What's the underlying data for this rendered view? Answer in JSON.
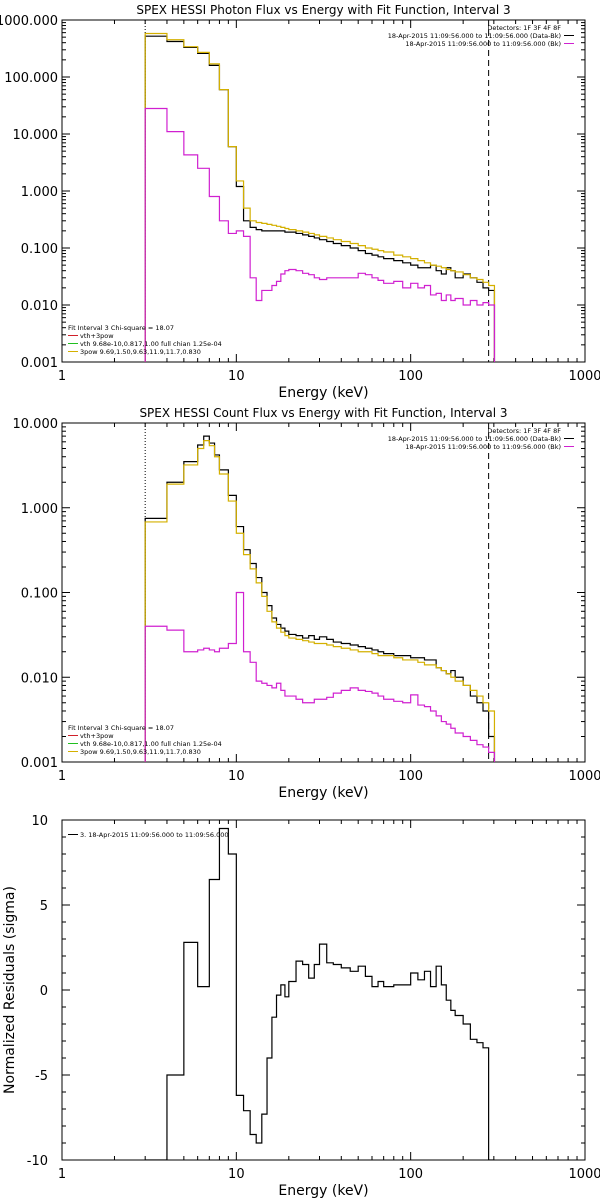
{
  "chart_data": [
    {
      "type": "line",
      "title": "SPEX HESSI Photon Flux vs Energy with Fit Function, Interval 3",
      "xlabel": "Energy (keV)",
      "ylabel": "",
      "xscale": "log",
      "yscale": "log",
      "xlim": [
        1,
        1000
      ],
      "ylim": [
        0.001,
        1000
      ],
      "xticks": [
        "1",
        "10",
        "100",
        "1000"
      ],
      "yticks": [
        "0.001",
        "0.010",
        "0.100",
        "1.000",
        "10.000",
        "100.000",
        "1000.000"
      ],
      "vlines": [
        3,
        280
      ],
      "legend_top": {
        "heading": "Detectors: 1F 3F 4F 8F",
        "items": [
          {
            "text": "18-Apr-2015 11:09:56.000 to 11:09:56.000 (Data-Bk)",
            "color": "#000000"
          },
          {
            "text": "18-Apr-2015 11:09:56.000 to 11:09:56.000 (Bk)",
            "color": "#d020d0"
          }
        ]
      },
      "legend_bottom": {
        "heading": "Fit Interval 3   Chi-square = 18.07",
        "items": [
          {
            "text": "vth+3pow",
            "color": "#d0202a"
          },
          {
            "text": "vth 9.68e-10,0.817,1.00  full chian 1.25e-04",
            "color": "#20c020"
          },
          {
            "text": "3pow 9.69,1.50,9.63,11.9,11.7,0.830",
            "color": "#d4b000"
          }
        ]
      },
      "series": [
        {
          "name": "Data-Bk",
          "color": "#000000",
          "step": true,
          "x": [
            3,
            4,
            5,
            6,
            7,
            8,
            9,
            10,
            11,
            12,
            13,
            14,
            15,
            16,
            17,
            18,
            19,
            20,
            22,
            24,
            26,
            28,
            30,
            33,
            36,
            40,
            45,
            50,
            55,
            60,
            65,
            70,
            80,
            90,
            100,
            110,
            120,
            130,
            140,
            150,
            160,
            170,
            180,
            200,
            220,
            240,
            260,
            280
          ],
          "y": [
            520,
            420,
            330,
            260,
            160,
            60,
            6,
            1.2,
            0.3,
            0.23,
            0.21,
            0.2,
            0.2,
            0.2,
            0.2,
            0.2,
            0.19,
            0.19,
            0.18,
            0.17,
            0.16,
            0.15,
            0.14,
            0.13,
            0.12,
            0.11,
            0.1,
            0.09,
            0.08,
            0.075,
            0.07,
            0.065,
            0.06,
            0.055,
            0.05,
            0.045,
            0.045,
            0.05,
            0.04,
            0.035,
            0.045,
            0.04,
            0.03,
            0.035,
            0.03,
            0.025,
            0.02,
            0.018
          ]
        },
        {
          "name": "3pow fit",
          "color": "#d4b000",
          "step": true,
          "x": [
            3,
            4,
            5,
            6,
            7,
            8,
            9,
            10,
            11,
            12,
            13,
            14,
            15,
            16,
            17,
            18,
            19,
            20,
            22,
            24,
            26,
            28,
            30,
            33,
            36,
            40,
            45,
            50,
            55,
            60,
            65,
            70,
            80,
            90,
            100,
            110,
            120,
            130,
            140,
            150,
            160,
            170,
            180,
            200,
            220,
            240,
            260,
            280
          ],
          "y": [
            580,
            450,
            340,
            270,
            170,
            60,
            6,
            1.5,
            0.5,
            0.3,
            0.28,
            0.27,
            0.26,
            0.25,
            0.24,
            0.23,
            0.22,
            0.21,
            0.2,
            0.19,
            0.18,
            0.17,
            0.16,
            0.15,
            0.14,
            0.13,
            0.12,
            0.11,
            0.1,
            0.095,
            0.09,
            0.085,
            0.075,
            0.07,
            0.065,
            0.06,
            0.055,
            0.05,
            0.048,
            0.045,
            0.042,
            0.04,
            0.038,
            0.034,
            0.03,
            0.028,
            0.025,
            0.022
          ]
        },
        {
          "name": "Bk",
          "color": "#d020d0",
          "step": true,
          "x": [
            3,
            4,
            5,
            6,
            7,
            8,
            9,
            10,
            11,
            12,
            13,
            14,
            15,
            16,
            17,
            18,
            19,
            20,
            22,
            24,
            26,
            28,
            30,
            33,
            36,
            40,
            45,
            50,
            55,
            60,
            65,
            70,
            80,
            90,
            100,
            110,
            120,
            130,
            140,
            150,
            160,
            170,
            180,
            200,
            220,
            240,
            260,
            280
          ],
          "y": [
            28,
            11,
            4.3,
            2.5,
            0.8,
            0.3,
            0.18,
            0.2,
            0.16,
            0.03,
            0.012,
            0.018,
            0.018,
            0.022,
            0.026,
            0.035,
            0.04,
            0.042,
            0.04,
            0.036,
            0.034,
            0.03,
            0.028,
            0.03,
            0.03,
            0.03,
            0.03,
            0.036,
            0.034,
            0.03,
            0.027,
            0.024,
            0.026,
            0.02,
            0.024,
            0.02,
            0.022,
            0.015,
            0.016,
            0.012,
            0.015,
            0.012,
            0.013,
            0.01,
            0.012,
            0.01,
            0.011,
            0.01
          ]
        }
      ]
    },
    {
      "type": "line",
      "title": "SPEX HESSI Count Flux vs Energy with Fit Function, Interval 3",
      "xlabel": "Energy (keV)",
      "ylabel": "",
      "xscale": "log",
      "yscale": "log",
      "xlim": [
        1,
        1000
      ],
      "ylim": [
        0.001,
        10
      ],
      "xticks": [
        "1",
        "10",
        "100",
        "1000"
      ],
      "yticks": [
        "0.001",
        "0.010",
        "0.100",
        "1.000",
        "10.000"
      ],
      "vlines": [
        3,
        280
      ],
      "legend_top": {
        "heading": "Detectors: 1F 3F 4F 8F",
        "items": [
          {
            "text": "18-Apr-2015 11:09:56.000 to 11:09:56.000 (Data-Bk)",
            "color": "#000000"
          },
          {
            "text": "18-Apr-2015 11:09:56.000 to 11:09:56.000 (Bk)",
            "color": "#d020d0"
          }
        ]
      },
      "legend_bottom": {
        "heading": "Fit Interval 3   Chi-square = 18.07",
        "items": [
          {
            "text": "vth+3pow",
            "color": "#d0202a"
          },
          {
            "text": "vth 9.68e-10,0.817,1.00  full chian 1.25e-04",
            "color": "#20c020"
          },
          {
            "text": "3pow 9.69,1.50,9.63,11.9,11.7,0.830",
            "color": "#d4b000"
          }
        ]
      },
      "series": [
        {
          "name": "Data-Bk",
          "color": "#000000",
          "step": true,
          "x": [
            3,
            4,
            5,
            6,
            6.5,
            7,
            7.5,
            8,
            9,
            10,
            11,
            12,
            13,
            14,
            15,
            16,
            17,
            18,
            19,
            20,
            22,
            24,
            26,
            28,
            30,
            33,
            36,
            40,
            45,
            50,
            55,
            60,
            65,
            70,
            80,
            90,
            100,
            110,
            120,
            130,
            140,
            150,
            160,
            170,
            180,
            200,
            220,
            240,
            260,
            280
          ],
          "y": [
            0.75,
            2,
            3.5,
            5.5,
            7,
            5.8,
            4.2,
            2.8,
            1.4,
            0.6,
            0.32,
            0.22,
            0.15,
            0.1,
            0.07,
            0.05,
            0.042,
            0.038,
            0.035,
            0.032,
            0.031,
            0.029,
            0.031,
            0.028,
            0.03,
            0.028,
            0.026,
            0.025,
            0.024,
            0.023,
            0.022,
            0.021,
            0.02,
            0.019,
            0.018,
            0.018,
            0.017,
            0.017,
            0.016,
            0.016,
            0.013,
            0.012,
            0.011,
            0.012,
            0.01,
            0.008,
            0.006,
            0.005,
            0.004,
            0.002
          ]
        },
        {
          "name": "3pow fit",
          "color": "#d4b000",
          "step": true,
          "x": [
            3,
            4,
            5,
            6,
            6.5,
            7,
            7.5,
            8,
            9,
            10,
            11,
            12,
            13,
            14,
            15,
            16,
            17,
            18,
            19,
            20,
            22,
            24,
            26,
            28,
            30,
            33,
            36,
            40,
            45,
            50,
            55,
            60,
            65,
            70,
            80,
            90,
            100,
            110,
            120,
            130,
            140,
            150,
            160,
            170,
            180,
            200,
            220,
            240,
            260,
            280
          ],
          "y": [
            0.68,
            1.9,
            3.2,
            5,
            6.2,
            5.4,
            4,
            2.5,
            1.2,
            0.5,
            0.28,
            0.19,
            0.13,
            0.09,
            0.06,
            0.045,
            0.038,
            0.034,
            0.031,
            0.029,
            0.028,
            0.027,
            0.026,
            0.025,
            0.025,
            0.024,
            0.023,
            0.022,
            0.021,
            0.02,
            0.02,
            0.019,
            0.018,
            0.018,
            0.017,
            0.016,
            0.016,
            0.015,
            0.014,
            0.014,
            0.013,
            0.012,
            0.011,
            0.01,
            0.009,
            0.008,
            0.007,
            0.006,
            0.005,
            0.004
          ]
        },
        {
          "name": "Bk",
          "color": "#d020d0",
          "step": true,
          "x": [
            3,
            4,
            5,
            6,
            6.5,
            7,
            7.5,
            8,
            9,
            10,
            11,
            12,
            13,
            14,
            15,
            16,
            17,
            18,
            19,
            20,
            22,
            24,
            26,
            28,
            30,
            33,
            36,
            40,
            45,
            50,
            55,
            60,
            65,
            70,
            80,
            90,
            100,
            110,
            120,
            130,
            140,
            150,
            160,
            170,
            180,
            200,
            220,
            240,
            260,
            280
          ],
          "y": [
            0.04,
            0.036,
            0.02,
            0.021,
            0.022,
            0.021,
            0.02,
            0.022,
            0.025,
            0.1,
            0.02,
            0.015,
            0.009,
            0.0085,
            0.008,
            0.0075,
            0.0085,
            0.007,
            0.006,
            0.006,
            0.0055,
            0.005,
            0.005,
            0.0055,
            0.0055,
            0.0058,
            0.0065,
            0.007,
            0.0075,
            0.007,
            0.0068,
            0.0065,
            0.006,
            0.0055,
            0.0052,
            0.005,
            0.0062,
            0.0047,
            0.0045,
            0.004,
            0.0035,
            0.003,
            0.0028,
            0.0025,
            0.0022,
            0.002,
            0.0018,
            0.0016,
            0.0015,
            0.0013
          ]
        }
      ]
    },
    {
      "type": "line",
      "title": "",
      "xlabel": "Energy (keV)",
      "ylabel": "Normalized Residuals (sigma)",
      "xscale": "log",
      "yscale": "linear",
      "xlim": [
        1,
        1000
      ],
      "ylim": [
        -10,
        10
      ],
      "xticks": [
        "1",
        "10",
        "100",
        "1000"
      ],
      "yticks": [
        "10",
        "5",
        "0",
        "-5",
        "-10"
      ],
      "legend_top": {
        "items": [
          {
            "text": "3. 18-Apr-2015 11:09:56.000 to 11:09:56.000",
            "color": "#000000"
          }
        ]
      },
      "series": [
        {
          "name": "3. 18-Apr-2015 11:09:56.000 to 11:09:56.000",
          "color": "#000000",
          "step": true,
          "x": [
            3,
            4,
            5,
            6,
            7,
            8,
            9,
            10,
            11,
            12,
            13,
            14,
            15,
            16,
            17,
            18,
            19,
            20,
            22,
            24,
            26,
            28,
            30,
            33,
            36,
            40,
            45,
            50,
            55,
            60,
            65,
            70,
            80,
            90,
            100,
            110,
            120,
            130,
            140,
            150,
            160,
            170,
            180,
            200,
            220,
            240,
            260,
            280
          ],
          "y": [
            -10,
            -5,
            2.8,
            0.2,
            6.5,
            9.5,
            8,
            -6.2,
            -7.1,
            -8.5,
            -9,
            -7.3,
            -4,
            -1.6,
            -0.3,
            0.3,
            -0.4,
            0.5,
            1.7,
            1.5,
            0.7,
            1.5,
            2.7,
            1.6,
            1.5,
            1.3,
            1.1,
            1.4,
            0.8,
            0.2,
            0.5,
            0.2,
            0.3,
            0.3,
            1,
            0.6,
            1.1,
            0.2,
            1.4,
            0.3,
            -0.6,
            -1.2,
            -1.5,
            -2,
            -2.9,
            -3.1,
            -3.4,
            -10
          ]
        }
      ]
    }
  ]
}
